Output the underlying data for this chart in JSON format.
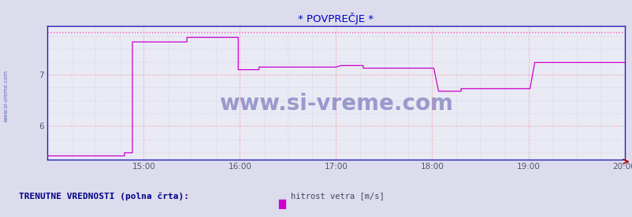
{
  "title": "* POVPREČJE *",
  "title_color": "#0000cc",
  "title_fontsize": 9.5,
  "xlim_minutes": [
    0,
    360
  ],
  "x_start_hour": 14,
  "ylim": [
    5.35,
    7.95
  ],
  "yticks": [
    6,
    7
  ],
  "xtick_labels": [
    "15:00",
    "16:00",
    "17:00",
    "18:00",
    "19:00",
    "20:00"
  ],
  "xtick_positions": [
    60,
    120,
    180,
    240,
    300,
    360
  ],
  "bg_color": "#dcdcec",
  "plot_bg_color": "#eaeaf5",
  "grid_color_major": "#ee9999",
  "grid_color_minor": "#ccccdd",
  "axis_color": "#2222bb",
  "line_color": "#cc00cc",
  "dotted_line_color": "#ff55bb",
  "dotted_line_value": 7.83,
  "watermark": "www.si-vreme.com",
  "watermark_color": "#1a1a8c",
  "watermark_fontsize": 20,
  "legend_label": "hitrost vetra [m/s]",
  "legend_color": "#cc00cc",
  "footnote": "TRENUTNE VREDNOSTI (polna črta):",
  "footnote_color": "#000088",
  "footnote_fontsize": 8,
  "sidewater_color": "#4455bb",
  "step_x": [
    0,
    48,
    48,
    53,
    53,
    87,
    87,
    119,
    119,
    132,
    132,
    180,
    183,
    197,
    197,
    241,
    244,
    258,
    258,
    301,
    304,
    360
  ],
  "step_y": [
    5.42,
    5.42,
    5.48,
    5.48,
    7.64,
    7.64,
    7.73,
    7.73,
    7.1,
    7.1,
    7.15,
    7.15,
    7.18,
    7.18,
    7.13,
    7.13,
    6.68,
    6.68,
    6.73,
    6.73,
    7.24,
    7.24
  ]
}
